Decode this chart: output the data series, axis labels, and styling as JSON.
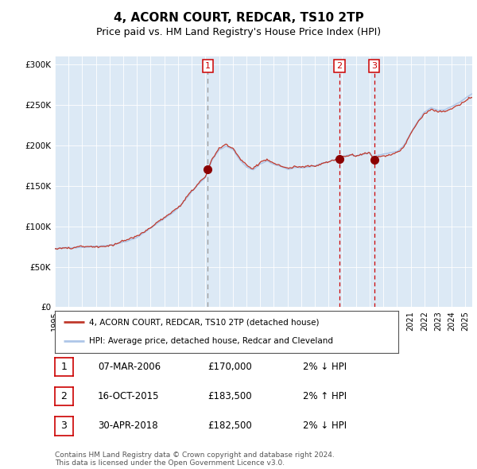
{
  "title": "4, ACORN COURT, REDCAR, TS10 2TP",
  "subtitle": "Price paid vs. HM Land Registry's House Price Index (HPI)",
  "legend_line1": "4, ACORN COURT, REDCAR, TS10 2TP (detached house)",
  "legend_line2": "HPI: Average price, detached house, Redcar and Cleveland",
  "row_data": [
    [
      "1",
      "07-MAR-2006",
      "£170,000",
      "2% ↓ HPI"
    ],
    [
      "2",
      "16-OCT-2015",
      "£183,500",
      "2% ↑ HPI"
    ],
    [
      "3",
      "30-APR-2018",
      "£182,500",
      "2% ↓ HPI"
    ]
  ],
  "transaction_dates_decimal": [
    2006.183,
    2015.792,
    2018.329
  ],
  "trans_prices": [
    170000,
    183500,
    182500
  ],
  "hpi_color": "#aec6e8",
  "price_color": "#c0392b",
  "dot_color": "#8b0000",
  "vline1_color": "#999999",
  "vline23_color": "#cc0000",
  "box_edge_color": "#cc0000",
  "bg_color": "#dce9f5",
  "grid_color": "#ffffff",
  "ylim": [
    0,
    310000
  ],
  "xlim_start": 1995.0,
  "xlim_end": 2025.5,
  "yticks": [
    0,
    50000,
    100000,
    150000,
    200000,
    250000,
    300000
  ],
  "ytick_labels": [
    "£0",
    "£50K",
    "£100K",
    "£150K",
    "£200K",
    "£250K",
    "£300K"
  ],
  "anchors": [
    [
      1995.0,
      72000
    ],
    [
      1996.0,
      73000
    ],
    [
      1997.0,
      75000
    ],
    [
      1998.0,
      77000
    ],
    [
      1999.0,
      79000
    ],
    [
      2000.0,
      83000
    ],
    [
      2001.0,
      88000
    ],
    [
      2002.0,
      100000
    ],
    [
      2003.0,
      112000
    ],
    [
      2004.0,
      125000
    ],
    [
      2005.0,
      145000
    ],
    [
      2006.0,
      163000
    ],
    [
      2006.5,
      185000
    ],
    [
      2007.0,
      197000
    ],
    [
      2007.5,
      202000
    ],
    [
      2008.0,
      198000
    ],
    [
      2008.5,
      185000
    ],
    [
      2009.0,
      175000
    ],
    [
      2009.5,
      172000
    ],
    [
      2010.0,
      178000
    ],
    [
      2010.5,
      182000
    ],
    [
      2011.0,
      178000
    ],
    [
      2011.5,
      176000
    ],
    [
      2012.0,
      172000
    ],
    [
      2012.5,
      173000
    ],
    [
      2013.0,
      172000
    ],
    [
      2013.5,
      173000
    ],
    [
      2014.0,
      175000
    ],
    [
      2014.5,
      178000
    ],
    [
      2015.0,
      180000
    ],
    [
      2015.5,
      183000
    ],
    [
      2016.0,
      186000
    ],
    [
      2016.5,
      188000
    ],
    [
      2017.0,
      188000
    ],
    [
      2017.5,
      190000
    ],
    [
      2018.0,
      192000
    ],
    [
      2018.33,
      185000
    ],
    [
      2018.5,
      188000
    ],
    [
      2019.0,
      190000
    ],
    [
      2019.5,
      192000
    ],
    [
      2020.0,
      193000
    ],
    [
      2020.5,
      200000
    ],
    [
      2021.0,
      215000
    ],
    [
      2021.5,
      228000
    ],
    [
      2022.0,
      240000
    ],
    [
      2022.5,
      245000
    ],
    [
      2023.0,
      242000
    ],
    [
      2023.5,
      243000
    ],
    [
      2024.0,
      248000
    ],
    [
      2024.5,
      252000
    ],
    [
      2025.0,
      258000
    ],
    [
      2025.5,
      263000
    ]
  ],
  "footer": "Contains HM Land Registry data © Crown copyright and database right 2024.\nThis data is licensed under the Open Government Licence v3.0.",
  "title_fontsize": 11,
  "subtitle_fontsize": 9,
  "tick_fontsize": 7.5,
  "legend_fontsize": 7.5,
  "row_fontsize": 8.5,
  "footer_fontsize": 6.5
}
